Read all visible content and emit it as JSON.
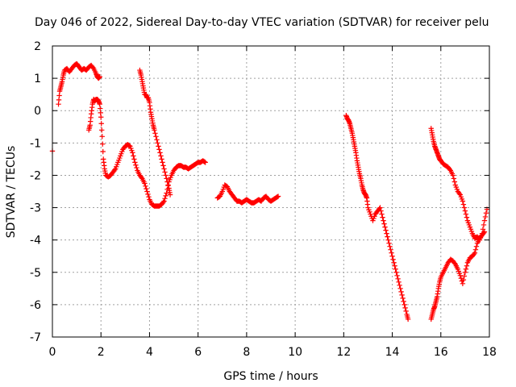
{
  "chart_data": {
    "type": "scatter",
    "title": "Day 046 of 2022, Sidereal Day-to-day VTEC variation (SDTVAR) for receiver pelu",
    "xlabel": "GPS time / hours",
    "ylabel": "SDTVAR / TECUs",
    "xlim": [
      0,
      18
    ],
    "ylim": [
      -7,
      2
    ],
    "x_ticks": [
      0,
      2,
      4,
      6,
      8,
      10,
      12,
      14,
      16,
      18
    ],
    "y_ticks": [
      2,
      1,
      0,
      -1,
      -2,
      -3,
      -4,
      -5,
      -6,
      -7
    ],
    "x_tick_labels": [
      "0",
      "2",
      "4",
      "6",
      "8",
      "10",
      "12",
      "14",
      "16",
      "18"
    ],
    "y_tick_labels": [
      "2",
      "1",
      "0",
      "-1",
      "-2",
      "-3",
      "-4",
      "-5",
      "-6",
      "-7"
    ],
    "grid": true,
    "marker": "+",
    "color": "#ff0000",
    "series": [
      {
        "name": "seg1",
        "x": [
          0.0
        ],
        "y": [
          -1.25
        ]
      },
      {
        "name": "seg2",
        "x": [
          0.25,
          0.3,
          0.35,
          0.4,
          0.45,
          0.5,
          0.6,
          0.7,
          0.8,
          0.9,
          1.0,
          1.05,
          1.1,
          1.2,
          1.3,
          1.4,
          1.5,
          1.6,
          1.7,
          1.8,
          1.85,
          1.9,
          1.95
        ],
        "y": [
          0.2,
          0.6,
          0.75,
          0.9,
          1.1,
          1.25,
          1.3,
          1.2,
          1.3,
          1.4,
          1.45,
          1.4,
          1.35,
          1.25,
          1.3,
          1.25,
          1.35,
          1.4,
          1.3,
          1.15,
          1.05,
          1.0,
          1.05
        ]
      },
      {
        "name": "seg3",
        "x": [
          1.5,
          1.55,
          1.6,
          1.65,
          1.7,
          1.75,
          1.8,
          1.85,
          1.9,
          1.95,
          2.0,
          2.05,
          2.1,
          2.15,
          2.2,
          2.3,
          2.4,
          2.5,
          2.6,
          2.7,
          2.8,
          2.9,
          3.0,
          3.1,
          3.2,
          3.3,
          3.4,
          3.5,
          3.6,
          3.7,
          3.8,
          3.9,
          4.0,
          4.1,
          4.2,
          4.3,
          4.4,
          4.5,
          4.6,
          4.7,
          4.8,
          4.9,
          5.0,
          5.1,
          5.2,
          5.3,
          5.4,
          5.5,
          5.6,
          5.7,
          5.8,
          5.9,
          6.0,
          6.1,
          6.2,
          6.3
        ],
        "y": [
          -0.6,
          -0.45,
          -0.1,
          0.2,
          0.35,
          0.3,
          0.35,
          0.35,
          0.3,
          0.2,
          -0.2,
          -0.8,
          -1.5,
          -1.8,
          -2.0,
          -2.05,
          -2.0,
          -1.9,
          -1.8,
          -1.6,
          -1.4,
          -1.2,
          -1.1,
          -1.05,
          -1.1,
          -1.3,
          -1.6,
          -1.85,
          -2.0,
          -2.1,
          -2.25,
          -2.5,
          -2.75,
          -2.9,
          -2.95,
          -2.95,
          -2.95,
          -2.9,
          -2.8,
          -2.55,
          -2.2,
          -2.0,
          -1.85,
          -1.75,
          -1.7,
          -1.7,
          -1.75,
          -1.75,
          -1.8,
          -1.75,
          -1.7,
          -1.65,
          -1.6,
          -1.6,
          -1.55,
          -1.6
        ]
      },
      {
        "name": "seg4",
        "x": [
          3.6,
          3.65,
          3.7,
          3.75,
          3.8,
          3.85,
          3.9,
          3.95,
          4.0,
          4.05,
          4.1,
          4.15,
          4.2,
          4.3,
          4.4,
          4.5,
          4.6,
          4.7,
          4.8,
          4.85
        ],
        "y": [
          1.25,
          1.1,
          0.9,
          0.7,
          0.5,
          0.5,
          0.4,
          0.4,
          0.25,
          -0.05,
          -0.25,
          -0.45,
          -0.6,
          -0.9,
          -1.2,
          -1.5,
          -1.8,
          -2.1,
          -2.4,
          -2.6
        ]
      },
      {
        "name": "seg5",
        "x": [
          6.8,
          6.9,
          7.0,
          7.1,
          7.2,
          7.3,
          7.4,
          7.5,
          7.6,
          7.7,
          7.8,
          7.9,
          8.0,
          8.1,
          8.2,
          8.3,
          8.4,
          8.5,
          8.6,
          8.7,
          8.8,
          8.9,
          9.0,
          9.1,
          9.2,
          9.3
        ],
        "y": [
          -2.7,
          -2.65,
          -2.5,
          -2.3,
          -2.35,
          -2.5,
          -2.6,
          -2.7,
          -2.8,
          -2.8,
          -2.85,
          -2.8,
          -2.75,
          -2.8,
          -2.85,
          -2.85,
          -2.8,
          -2.75,
          -2.8,
          -2.7,
          -2.65,
          -2.75,
          -2.8,
          -2.75,
          -2.7,
          -2.65
        ]
      },
      {
        "name": "seg6",
        "x": [
          12.1,
          12.15,
          12.2,
          12.25,
          12.3,
          12.35,
          12.4,
          12.45,
          12.5,
          12.55,
          12.6,
          12.65,
          12.7,
          12.75,
          12.8,
          12.85,
          12.9,
          12.95,
          13.0,
          13.1,
          13.2,
          13.3,
          13.4,
          13.5,
          13.6,
          13.7,
          13.8,
          13.9,
          14.0,
          14.1,
          14.2,
          14.3,
          14.4,
          14.5,
          14.6,
          14.65
        ],
        "y": [
          -0.15,
          -0.25,
          -0.3,
          -0.4,
          -0.55,
          -0.7,
          -0.9,
          -1.1,
          -1.3,
          -1.55,
          -1.75,
          -1.95,
          -2.1,
          -2.3,
          -2.45,
          -2.55,
          -2.6,
          -2.7,
          -3.0,
          -3.2,
          -3.4,
          -3.2,
          -3.1,
          -3.0,
          -3.3,
          -3.6,
          -3.9,
          -4.2,
          -4.5,
          -4.8,
          -5.1,
          -5.4,
          -5.7,
          -6.0,
          -6.3,
          -6.45
        ]
      },
      {
        "name": "seg7",
        "x": [
          15.6,
          15.65,
          15.7,
          15.75,
          15.8,
          15.85,
          15.9,
          15.95,
          16.0,
          16.1,
          16.2,
          16.3,
          16.4,
          16.5,
          16.6,
          16.7,
          16.8,
          16.9,
          17.0,
          17.1,
          17.2,
          17.3,
          17.4,
          17.5,
          17.6,
          17.7,
          17.8,
          17.9
        ],
        "y": [
          -0.55,
          -0.75,
          -0.95,
          -1.1,
          -1.2,
          -1.3,
          -1.4,
          -1.5,
          -1.55,
          -1.65,
          -1.7,
          -1.75,
          -1.85,
          -2.0,
          -2.3,
          -2.5,
          -2.6,
          -2.8,
          -3.1,
          -3.4,
          -3.6,
          -3.8,
          -3.95,
          -3.9,
          -4.0,
          -3.8,
          -3.4,
          -3.05
        ]
      },
      {
        "name": "seg8",
        "x": [
          15.6,
          15.65,
          15.7,
          15.75,
          15.8,
          15.85,
          15.9,
          15.95,
          16.0,
          16.1,
          16.2,
          16.3,
          16.4,
          16.5,
          16.6,
          16.7,
          16.8,
          16.9,
          17.0,
          17.1,
          17.2,
          17.3,
          17.4,
          17.5,
          17.6,
          17.7,
          17.8
        ],
        "y": [
          -6.45,
          -6.3,
          -6.15,
          -6.05,
          -5.9,
          -5.75,
          -5.5,
          -5.3,
          -5.15,
          -5.0,
          -4.85,
          -4.7,
          -4.6,
          -4.65,
          -4.75,
          -4.9,
          -5.1,
          -5.35,
          -5.0,
          -4.7,
          -4.55,
          -4.5,
          -4.4,
          -4.1,
          -3.95,
          -3.85,
          -3.75
        ]
      }
    ]
  }
}
